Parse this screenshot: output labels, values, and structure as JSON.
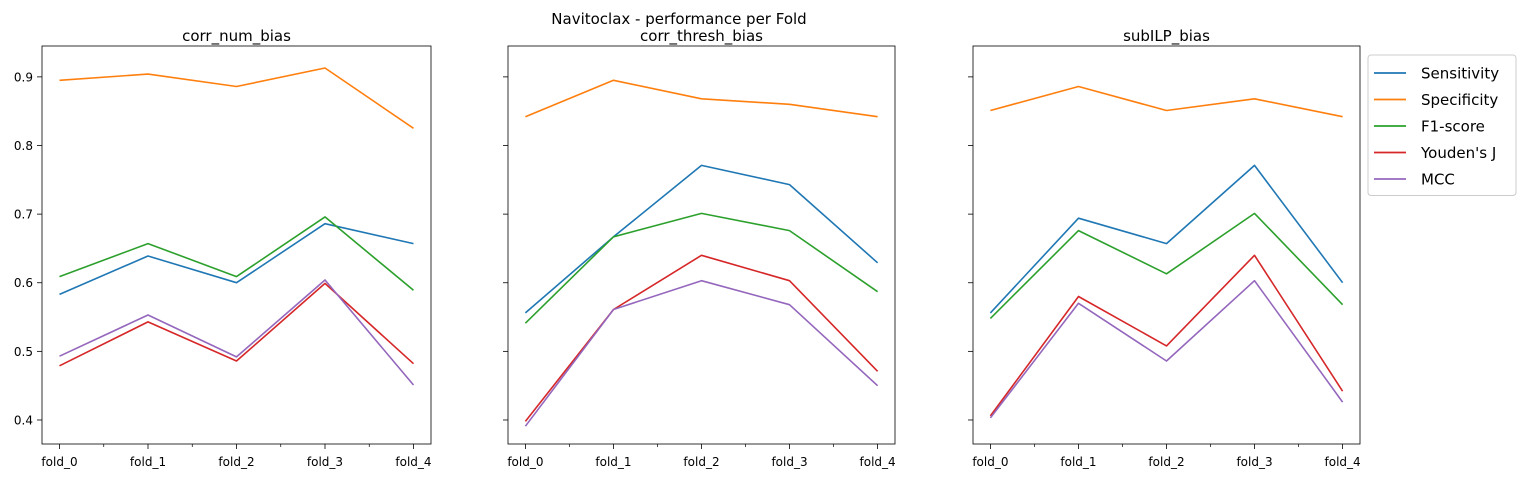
{
  "suptitle": "Navitoclax - performance per Fold",
  "legend": {
    "placement": "outside-right-top",
    "entries": [
      {
        "name": "Sensitivity",
        "color": "#1f77b4"
      },
      {
        "name": "Specificity",
        "color": "#ff7f0e"
      },
      {
        "name": "F1-score",
        "color": "#2ca02c"
      },
      {
        "name": "Youden's J",
        "color": "#d62728"
      },
      {
        "name": "MCC",
        "color": "#9467bd"
      }
    ]
  },
  "chart_data": [
    {
      "type": "line",
      "title": "corr_num_bias",
      "categories": [
        "fold_0",
        "fold_1",
        "fold_2",
        "fold_3",
        "fold_4"
      ],
      "ylim": [
        0.365,
        0.945
      ],
      "yticks": [
        0.4,
        0.5,
        0.6,
        0.7,
        0.8,
        0.9
      ],
      "yticklabels": [
        "0.4",
        "0.5",
        "0.6",
        "0.7",
        "0.8",
        "0.9"
      ],
      "grid": false,
      "series": [
        {
          "name": "Sensitivity",
          "values": [
            0.583,
            0.639,
            0.6,
            0.686,
            0.657
          ]
        },
        {
          "name": "Specificity",
          "values": [
            0.895,
            0.904,
            0.886,
            0.913,
            0.825
          ]
        },
        {
          "name": "F1-score",
          "values": [
            0.609,
            0.657,
            0.609,
            0.696,
            0.589
          ]
        },
        {
          "name": "Youden's J",
          "values": [
            0.479,
            0.543,
            0.486,
            0.599,
            0.482
          ]
        },
        {
          "name": "MCC",
          "values": [
            0.493,
            0.553,
            0.492,
            0.604,
            0.451
          ]
        }
      ]
    },
    {
      "type": "line",
      "title": "corr_thresh_bias",
      "categories": [
        "fold_0",
        "fold_1",
        "fold_2",
        "fold_3",
        "fold_4"
      ],
      "ylim": [
        0.365,
        0.945
      ],
      "grid": false,
      "series": [
        {
          "name": "Sensitivity",
          "values": [
            0.556,
            0.667,
            0.771,
            0.743,
            0.629
          ]
        },
        {
          "name": "Specificity",
          "values": [
            0.842,
            0.895,
            0.868,
            0.86,
            0.842
          ]
        },
        {
          "name": "F1-score",
          "values": [
            0.541,
            0.667,
            0.701,
            0.676,
            0.587
          ]
        },
        {
          "name": "Youden's J",
          "values": [
            0.398,
            0.561,
            0.64,
            0.603,
            0.471
          ]
        },
        {
          "name": "MCC",
          "values": [
            0.391,
            0.561,
            0.603,
            0.568,
            0.45
          ]
        }
      ]
    },
    {
      "type": "line",
      "title": "subILP_bias",
      "categories": [
        "fold_0",
        "fold_1",
        "fold_2",
        "fold_3",
        "fold_4"
      ],
      "ylim": [
        0.365,
        0.945
      ],
      "grid": false,
      "series": [
        {
          "name": "Sensitivity",
          "values": [
            0.556,
            0.694,
            0.657,
            0.771,
            0.6
          ]
        },
        {
          "name": "Specificity",
          "values": [
            0.851,
            0.886,
            0.851,
            0.868,
            0.842
          ]
        },
        {
          "name": "F1-score",
          "values": [
            0.548,
            0.676,
            0.613,
            0.701,
            0.568
          ]
        },
        {
          "name": "Youden's J",
          "values": [
            0.406,
            0.58,
            0.508,
            0.64,
            0.442
          ]
        },
        {
          "name": "MCC",
          "values": [
            0.403,
            0.57,
            0.486,
            0.603,
            0.426
          ]
        }
      ]
    }
  ]
}
